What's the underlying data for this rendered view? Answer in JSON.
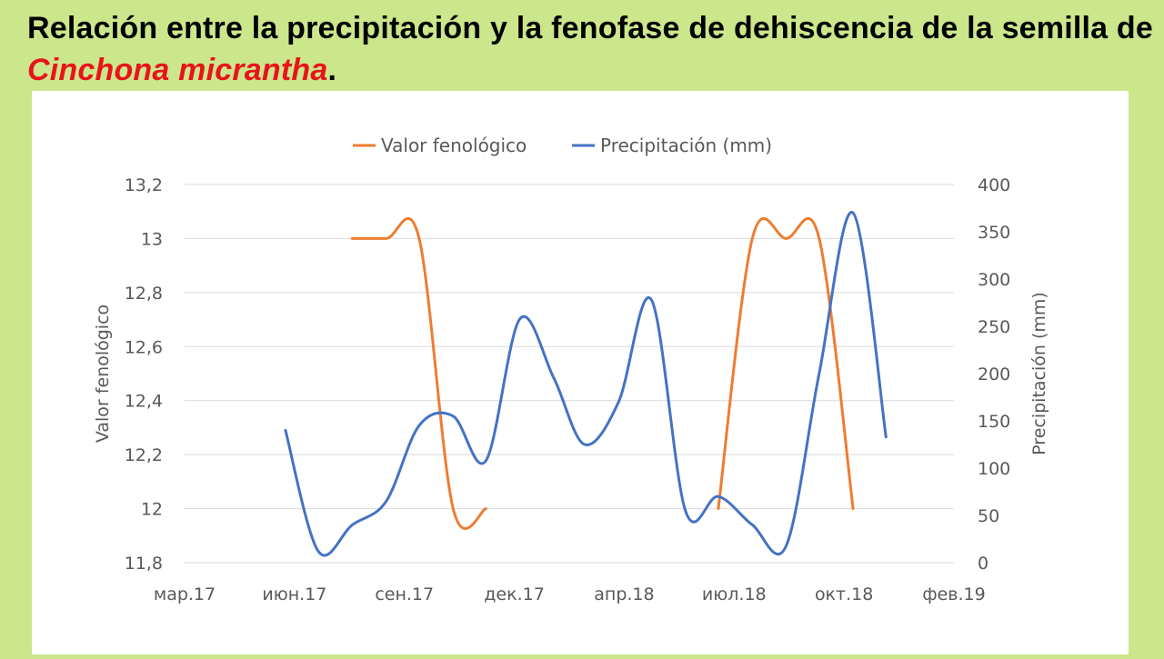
{
  "slide": {
    "title_main": "Relación entre la precipitación y la fenofase de dehiscencia de la semilla de ",
    "title_species": "Cinchona micrantha",
    "title_end": "."
  },
  "colors": {
    "background": "#cce68c",
    "title_species": "#e8141a",
    "series_pheno": "#ed7d31",
    "series_precip": "#4472c4",
    "grid": "#d9d9d9"
  },
  "chart_data": {
    "type": "line",
    "legend_position": "top",
    "grid": true,
    "x_axis": {
      "ticks": [
        "мар.17",
        "июн.17",
        "сен.17",
        "дек.17",
        "апр.18",
        "июл.18",
        "окт.18",
        "фев.19"
      ],
      "range": [
        "2017-03-01",
        "2019-02-01"
      ]
    },
    "y_left": {
      "label": "Valor fenológico",
      "ylim": [
        11.8,
        13.2
      ],
      "ticks": [
        "13,2",
        "13",
        "12,8",
        "12,6",
        "12,4",
        "12,2",
        "12",
        "11,8"
      ],
      "tick_values": [
        13.2,
        13.0,
        12.8,
        12.6,
        12.4,
        12.2,
        12.0,
        11.8
      ]
    },
    "y_right": {
      "label": "Precipitación (mm)",
      "ylim": [
        0,
        400
      ],
      "ticks": [
        "400",
        "350",
        "300",
        "250",
        "200",
        "150",
        "100",
        "50",
        "0"
      ],
      "tick_values": [
        400,
        350,
        300,
        250,
        200,
        150,
        100,
        50,
        0
      ]
    },
    "series": [
      {
        "name": "Valor fenológico",
        "axis": "left",
        "points": [
          [
            "2017-08-01",
            13.0
          ],
          [
            "2017-09-01",
            13.0
          ],
          [
            "2017-10-01",
            13.0
          ],
          [
            "2017-11-01",
            12.0
          ],
          [
            "2017-12-01",
            12.0
          ]
        ]
      },
      {
        "name": "Valor fenológico",
        "axis": "left",
        "points": [
          [
            "2018-07-01",
            12.0
          ],
          [
            "2018-08-01",
            13.0
          ],
          [
            "2018-09-01",
            13.0
          ],
          [
            "2018-10-01",
            13.0
          ],
          [
            "2018-11-01",
            12.0
          ]
        ]
      },
      {
        "name": "Precipitación (mm)",
        "axis": "right",
        "points": [
          [
            "2017-06-01",
            140
          ],
          [
            "2017-07-01",
            12
          ],
          [
            "2017-08-01",
            40
          ],
          [
            "2017-09-01",
            65
          ],
          [
            "2017-10-01",
            145
          ],
          [
            "2017-11-01",
            155
          ],
          [
            "2017-12-01",
            108
          ],
          [
            "2018-01-01",
            258
          ],
          [
            "2018-02-01",
            195
          ],
          [
            "2018-03-01",
            125
          ],
          [
            "2018-04-01",
            170
          ],
          [
            "2018-05-01",
            278
          ],
          [
            "2018-06-01",
            55
          ],
          [
            "2018-07-01",
            70
          ],
          [
            "2018-08-01",
            40
          ],
          [
            "2018-09-01",
            18
          ],
          [
            "2018-10-01",
            200
          ],
          [
            "2018-11-01",
            370
          ],
          [
            "2018-12-01",
            133
          ]
        ]
      }
    ]
  }
}
